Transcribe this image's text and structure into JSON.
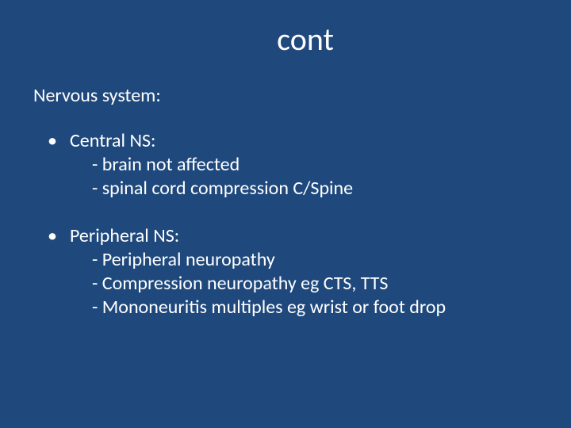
{
  "slide": {
    "background_color": "#1f497d",
    "text_color": "#ffffff",
    "title": "cont",
    "title_fontsize": 40,
    "subtitle": "Nervous system:",
    "subtitle_fontsize": 24,
    "body_fontsize": 24,
    "bullets": [
      {
        "heading": "Central NS:",
        "lines": [
          "-  brain not affected",
          "- spinal cord compression  C/Spine"
        ]
      },
      {
        "heading": "Peripheral NS:",
        "lines": [
          "-  Peripheral neuropathy",
          "-  Compression neuropathy eg CTS, TTS",
          "-  Mononeuritis multiples eg wrist or foot drop"
        ]
      }
    ]
  }
}
